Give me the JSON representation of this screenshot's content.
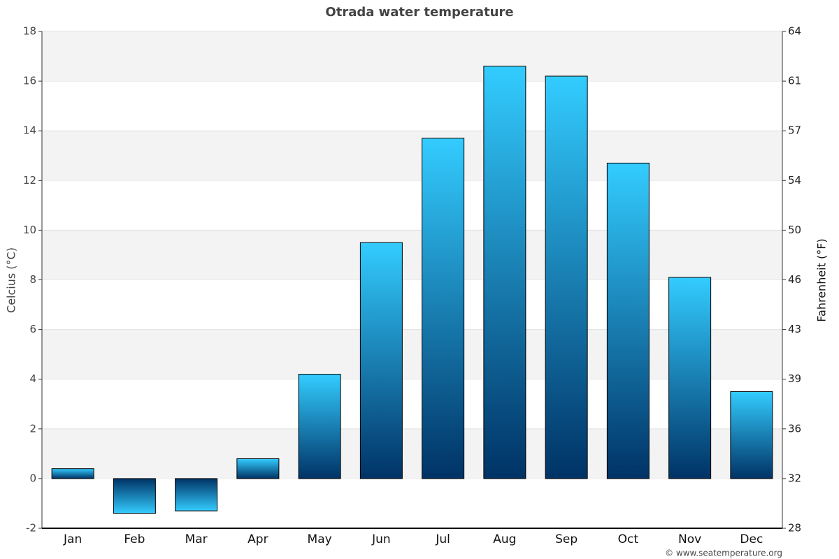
{
  "chart_data": {
    "type": "bar",
    "title": "Otrada water temperature",
    "categories": [
      "Jan",
      "Feb",
      "Mar",
      "Apr",
      "May",
      "Jun",
      "Jul",
      "Aug",
      "Sep",
      "Oct",
      "Nov",
      "Dec"
    ],
    "values": [
      0.4,
      -1.4,
      -1.3,
      0.8,
      4.2,
      9.5,
      13.7,
      16.6,
      16.2,
      12.7,
      8.1,
      3.5
    ],
    "gradient": [
      "#33ccff",
      "#003366"
    ],
    "ylabel": "Celcius (°C)",
    "y2label": "Fahrenheit (°F)",
    "ylim": [
      -2,
      18
    ],
    "yticks": [
      -2,
      0,
      2,
      4,
      6,
      8,
      10,
      12,
      14,
      16,
      18
    ],
    "y2lim": [
      28.4,
      64.4
    ],
    "y2ticks": [
      {
        "value": 28.4,
        "label": "28"
      },
      32,
      {
        "value": 35.6,
        "label": "36"
      },
      {
        "value": 39.2,
        "label": "39"
      },
      {
        "value": 42.8,
        "label": "43"
      },
      {
        "value": 46.4,
        "label": "46"
      },
      50,
      {
        "value": 53.6,
        "label": "54"
      },
      {
        "value": 57.2,
        "label": "57"
      },
      {
        "value": 60.8,
        "label": "61"
      },
      {
        "value": 64.4,
        "label": "64"
      }
    ],
    "grid": true,
    "source": "© www.seatemperature.org"
  }
}
